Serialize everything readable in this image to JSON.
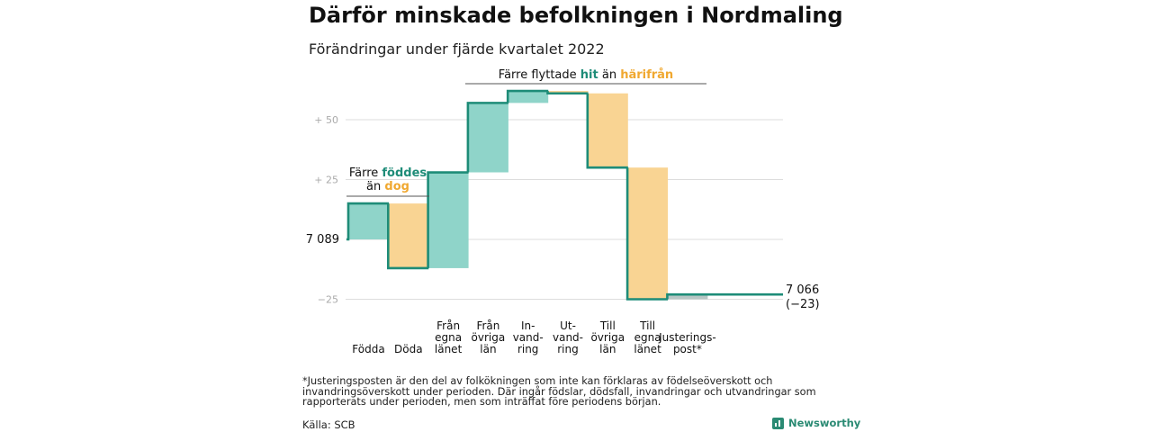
{
  "header": {
    "title": "Därför minskade befolkningen i Nordmaling",
    "subtitle": "Förändringar under fjärde kvartalet 2022"
  },
  "colors": {
    "positive": "#8fd4c9",
    "negative": "#f9d493",
    "adjust": "#b7c6c4",
    "step": "#1e8c78",
    "grid": "#dddddd",
    "tick": "#aaaaaa"
  },
  "chart_data": {
    "type": "waterfall",
    "start": {
      "label": "7 089",
      "value": 7089
    },
    "end": {
      "label": "7 066",
      "change_label": "(−23)",
      "value": 7066
    },
    "y_ticks": [
      {
        "label": "+ 50",
        "delta": 50
      },
      {
        "label": "+ 25",
        "delta": 25
      },
      {
        "label": "−25",
        "delta": -25
      }
    ],
    "ylim": [
      -25,
      63
    ],
    "steps": [
      {
        "label": "Födda",
        "change": 15,
        "kind": "positive"
      },
      {
        "label": "Döda",
        "change": -27,
        "kind": "negative"
      },
      {
        "label": "Från egna länet",
        "change": 40,
        "kind": "positive"
      },
      {
        "label": "Från övriga län",
        "change": 29,
        "kind": "positive"
      },
      {
        "label": "In-vandring",
        "change": 5,
        "kind": "positive"
      },
      {
        "label": "Ut-vandring",
        "change": -1,
        "kind": "negative"
      },
      {
        "label": "Till övriga län",
        "change": -31,
        "kind": "negative"
      },
      {
        "label": "Till egna länet",
        "change": -55,
        "kind": "negative"
      },
      {
        "label": "Justerings-post*",
        "change": 2,
        "kind": "adjust"
      }
    ],
    "annotations": [
      {
        "text_before": "Färre ",
        "highlight1": "föddes",
        "middle": "än ",
        "highlight2": "dog"
      },
      {
        "text_before": "Färre flyttade ",
        "highlight1": "hit",
        "middle": " än ",
        "highlight2": "härifrån"
      }
    ]
  },
  "x_labels": [
    {
      "lines": [
        "Födda"
      ]
    },
    {
      "lines": [
        "Döda"
      ]
    },
    {
      "lines": [
        "Från",
        "egna",
        "länet"
      ]
    },
    {
      "lines": [
        "Från",
        "övriga",
        "län"
      ]
    },
    {
      "lines": [
        "In-",
        "vand-",
        "ring"
      ]
    },
    {
      "lines": [
        "Ut-",
        "vand-",
        "ring"
      ]
    },
    {
      "lines": [
        "Till",
        "övriga",
        "län"
      ]
    },
    {
      "lines": [
        "Till",
        "egna",
        "länet"
      ]
    },
    {
      "lines": [
        "Justerings-",
        "post*"
      ]
    }
  ],
  "footnote": "*Justeringsposten är den del av folkökningen som inte kan förklaras av födelseöverskott och invandringsöverskott under perioden. Där ingår födslar, dödsfall, invandringar och utvandringar som rapporterats under perioden, men som inträffat före periodens början.",
  "source": "Källa: SCB",
  "brand": {
    "name": "Newsworthy",
    "icon": "bar-chart-icon"
  }
}
